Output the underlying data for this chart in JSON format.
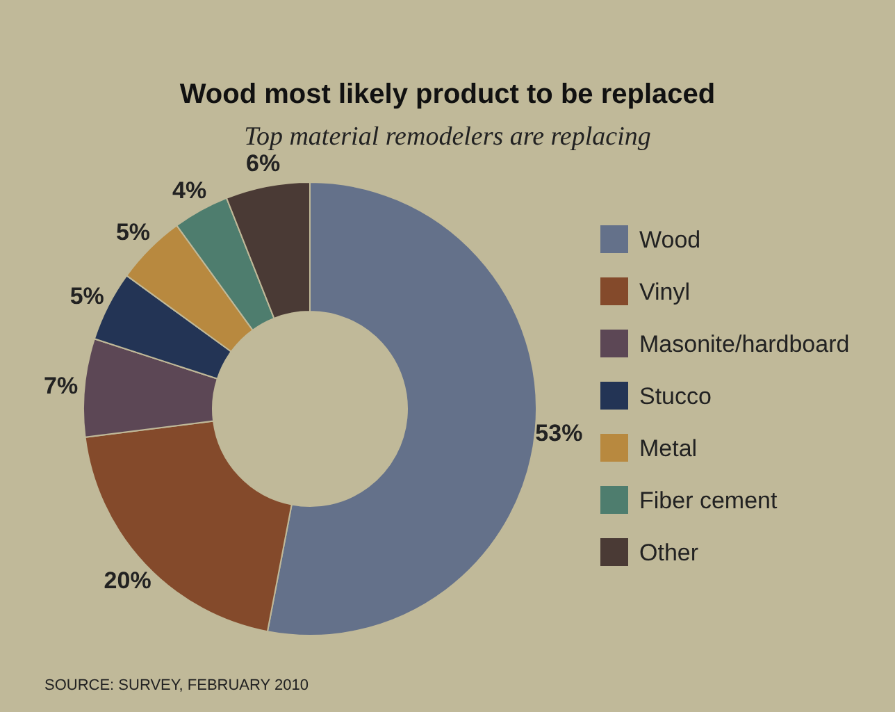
{
  "chart_data": {
    "type": "donut",
    "title": "Wood most likely product to be replaced",
    "subtitle": "Top material remodelers are replacing",
    "categories": [
      "Wood",
      "Vinyl",
      "Masonite/hardboard",
      "Stucco",
      "Metal",
      "Fiber cement",
      "Other"
    ],
    "values": [
      53,
      20,
      7,
      5,
      5,
      4,
      6
    ],
    "colors": [
      "#64718a",
      "#844a2b",
      "#5c4755",
      "#233455",
      "#b8893f",
      "#4e7d6e",
      "#4a3a35"
    ],
    "value_labels": [
      "53%",
      "20%",
      "7%",
      "5%",
      "5%",
      "4%",
      "6%"
    ],
    "legend": "right",
    "annotations": [
      "SOURCE: SURVEY, FEBRUARY 2010"
    ]
  }
}
